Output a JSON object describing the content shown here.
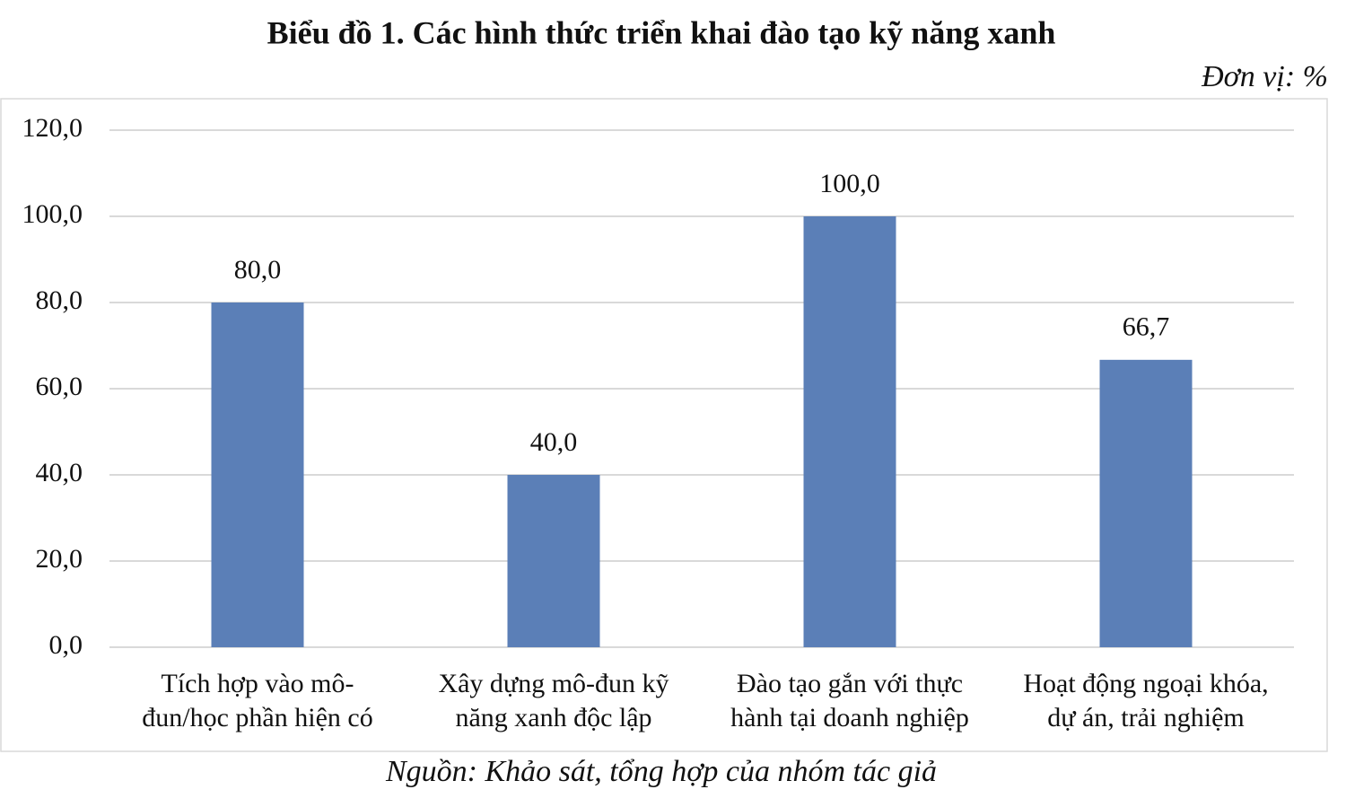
{
  "chart_data": {
    "type": "bar",
    "title": "Biểu đồ 1. Các hình thức triển khai đào tạo kỹ năng xanh",
    "unit": "Đơn vị: %",
    "source": "Nguồn: Khảo sát, tổng hợp của nhóm tác giả",
    "categories": [
      "Tích hợp vào mô-\nđun/học phần hiện có",
      "Xây dựng mô-đun kỹ\nnăng xanh độc lập",
      "Đào tạo gắn với thực\nhành tại doanh nghiệp",
      "Hoạt động ngoại khóa,\ndự án, trải nghiệm"
    ],
    "values": [
      80,
      40,
      100,
      66.7
    ],
    "value_labels": [
      "80,0",
      "40,0",
      "100,0",
      "66,7"
    ],
    "color": "#5b7fb7",
    "ylim": [
      0,
      120
    ],
    "yticks": [
      {
        "value": 0,
        "label": "0,0"
      },
      {
        "value": 20,
        "label": "20,0"
      },
      {
        "value": 40,
        "label": "40,0"
      },
      {
        "value": 60,
        "label": "60,0"
      },
      {
        "value": 80,
        "label": "80,0"
      },
      {
        "value": 100,
        "label": "100,0"
      },
      {
        "value": 120,
        "label": "120,0"
      }
    ],
    "grid": true
  }
}
